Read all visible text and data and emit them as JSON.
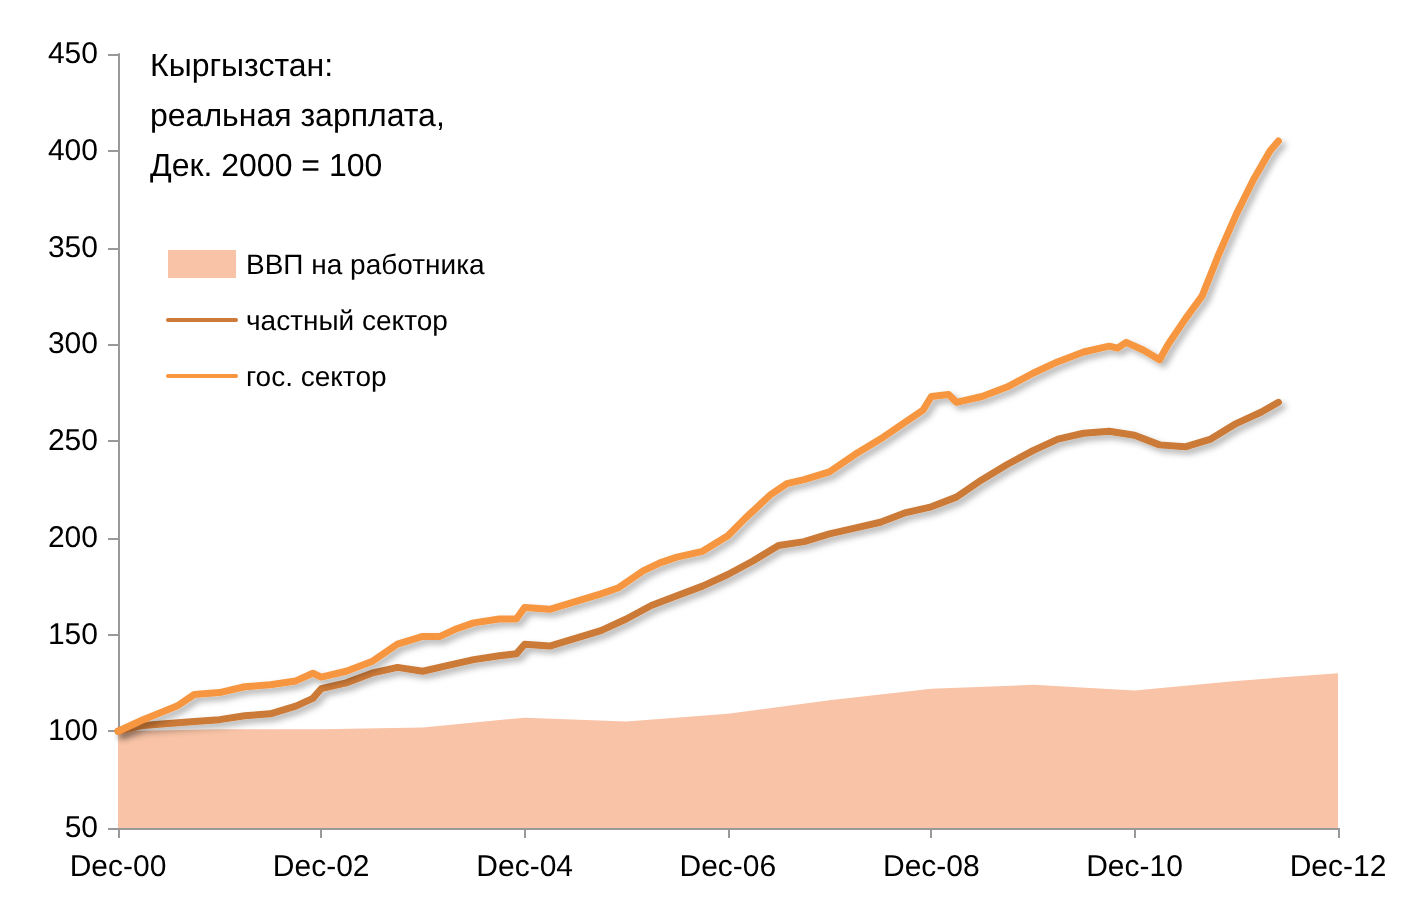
{
  "chart_data": {
    "type": "line",
    "title": "Кыргызстан:\nреальная зарплата,\nДек. 2000 = 100",
    "xlim": [
      "2000-12",
      "2012-12"
    ],
    "xticks": [
      {
        "value": "2000-12",
        "label": "Dec-00"
      },
      {
        "value": "2002-12",
        "label": "Dec-02"
      },
      {
        "value": "2004-12",
        "label": "Dec-04"
      },
      {
        "value": "2006-12",
        "label": "Dec-06"
      },
      {
        "value": "2008-12",
        "label": "Dec-08"
      },
      {
        "value": "2010-12",
        "label": "Dec-10"
      },
      {
        "value": "2012-12",
        "label": "Dec-12"
      }
    ],
    "ylim": [
      50,
      450
    ],
    "yticks": [
      50,
      100,
      150,
      200,
      250,
      300,
      350,
      400,
      450
    ],
    "grid": false,
    "legend": "top left",
    "marker": "none",
    "line_style": "solid",
    "series": [
      {
        "name": "ВВП на работника",
        "type": "area",
        "color": "#f8c3a6",
        "x": [
          "2000-12",
          "2001-12",
          "2002-12",
          "2003-12",
          "2004-12",
          "2005-12",
          "2006-12",
          "2007-12",
          "2008-12",
          "2009-12",
          "2010-12",
          "2011-12",
          "2012-12"
        ],
        "values": [
          100,
          101,
          101,
          102,
          107,
          105,
          109,
          116,
          122,
          124,
          121,
          126,
          130
        ]
      },
      {
        "name": "частный сектор",
        "type": "line",
        "color": "#cc7a37",
        "x": [
          "2000-12",
          "2001-03",
          "2001-06",
          "2001-09",
          "2001-12",
          "2002-03",
          "2002-06",
          "2002-09",
          "2002-11",
          "2002-12",
          "2003-03",
          "2003-06",
          "2003-09",
          "2003-12",
          "2004-03",
          "2004-06",
          "2004-09",
          "2004-11",
          "2004-12",
          "2005-03",
          "2005-06",
          "2005-09",
          "2005-12",
          "2006-03",
          "2006-06",
          "2006-09",
          "2006-12",
          "2007-03",
          "2007-06",
          "2007-09",
          "2007-12",
          "2008-03",
          "2008-06",
          "2008-09",
          "2008-12",
          "2009-03",
          "2009-06",
          "2009-09",
          "2009-12",
          "2010-03",
          "2010-06",
          "2010-09",
          "2010-12",
          "2011-03",
          "2011-06",
          "2011-09",
          "2011-12",
          "2012-03",
          "2012-05"
        ],
        "values": [
          100,
          103,
          104,
          105,
          106,
          108,
          109,
          113,
          117,
          122,
          125,
          130,
          133,
          131,
          134,
          137,
          139,
          140,
          145,
          144,
          148,
          152,
          158,
          165,
          170,
          175,
          181,
          188,
          196,
          198,
          202,
          205,
          208,
          213,
          216,
          221,
          230,
          238,
          245,
          251,
          254,
          255,
          253,
          248,
          247,
          251,
          259,
          265,
          270
        ]
      },
      {
        "name": "гос. сектор",
        "type": "line",
        "color": "#f7963f",
        "x": [
          "2000-12",
          "2001-03",
          "2001-07",
          "2001-09",
          "2001-12",
          "2002-03",
          "2002-06",
          "2002-09",
          "2002-11",
          "2002-12",
          "2003-03",
          "2003-06",
          "2003-09",
          "2003-12",
          "2004-02",
          "2004-04",
          "2004-06",
          "2004-09",
          "2004-11",
          "2004-12",
          "2005-03",
          "2005-06",
          "2005-09",
          "2005-11",
          "2006-02",
          "2006-04",
          "2006-06",
          "2006-09",
          "2006-12",
          "2007-02",
          "2007-05",
          "2007-07",
          "2007-09",
          "2007-12",
          "2008-03",
          "2008-06",
          "2008-09",
          "2008-11",
          "2008-12",
          "2009-02",
          "2009-03",
          "2009-06",
          "2009-09",
          "2009-12",
          "2010-03",
          "2010-06",
          "2010-09",
          "2010-10",
          "2010-11",
          "2011-01",
          "2011-03",
          "2011-04",
          "2011-06",
          "2011-08",
          "2011-10",
          "2011-12",
          "2012-02",
          "2012-04",
          "2012-05"
        ],
        "values": [
          100,
          106,
          113,
          119,
          120,
          123,
          124,
          126,
          130,
          128,
          131,
          136,
          145,
          149,
          149,
          153,
          156,
          158,
          158,
          164,
          163,
          167,
          171,
          174,
          183,
          187,
          190,
          193,
          201,
          210,
          222,
          228,
          230,
          234,
          243,
          251,
          260,
          266,
          273,
          274,
          270,
          273,
          278,
          285,
          291,
          296,
          299,
          298,
          301,
          297,
          292,
          300,
          313,
          325,
          347,
          367,
          385,
          400,
          405
        ]
      }
    ]
  }
}
